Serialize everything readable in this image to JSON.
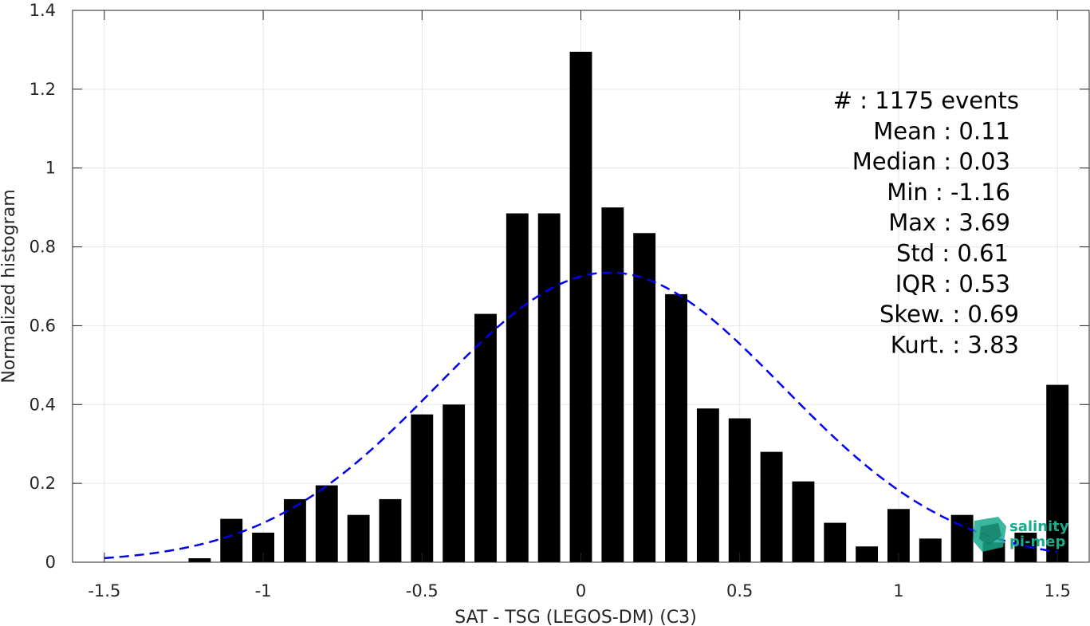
{
  "chart_data": {
    "type": "bar",
    "xlabel": "SAT - TSG (LEGOS-DM) (C3)",
    "ylabel": "Normalized histogram",
    "xlim": [
      -1.6,
      1.6
    ],
    "ylim": [
      0,
      1.4
    ],
    "grid": true,
    "xticks": [
      -1.5,
      -1,
      -0.5,
      0,
      0.5,
      1,
      1.5
    ],
    "xtick_labels": [
      "-1.5",
      "-1",
      "-0.5",
      "0",
      "0.5",
      "1",
      "1.5"
    ],
    "yticks": [
      0,
      0.2,
      0.4,
      0.6,
      0.8,
      1,
      1.2,
      1.4
    ],
    "ytick_labels": [
      "0",
      "0.2",
      "0.4",
      "0.6",
      "0.8",
      "1",
      "1.2",
      "1.4"
    ],
    "bar_width": 0.07,
    "bin_centers": [
      -1.2,
      -1.1,
      -1.0,
      -0.9,
      -0.8,
      -0.7,
      -0.6,
      -0.5,
      -0.4,
      -0.3,
      -0.2,
      -0.1,
      0.0,
      0.1,
      0.2,
      0.3,
      0.4,
      0.5,
      0.6,
      0.7,
      0.8,
      0.9,
      1.0,
      1.1,
      1.2,
      1.3,
      1.4,
      1.5
    ],
    "values": [
      0.01,
      0.11,
      0.075,
      0.16,
      0.195,
      0.12,
      0.16,
      0.375,
      0.4,
      0.63,
      0.885,
      0.885,
      1.295,
      0.9,
      0.835,
      0.68,
      0.39,
      0.365,
      0.28,
      0.205,
      0.1,
      0.04,
      0.135,
      0.06,
      0.12,
      0.05,
      0.075,
      0.45
    ],
    "bar_color": "#000000",
    "fit_curve": {
      "style": "dashed",
      "color": "#0000ee",
      "mean": 0.09,
      "std": 0.545,
      "peak": 0.735,
      "x_range": [
        -1.5,
        1.5
      ]
    },
    "stats": [
      {
        "label": "#  : 1175 events"
      },
      {
        "label": "Mean : 0.11"
      },
      {
        "label": "Median : 0.03"
      },
      {
        "label": "Min : -1.16"
      },
      {
        "label": "Max : 3.69"
      },
      {
        "label": "Std : 0.61"
      },
      {
        "label": "IQR : 0.53"
      },
      {
        "label": "Skew. : 0.69"
      },
      {
        "label": "Kurt. : 3.83"
      }
    ]
  },
  "logo": {
    "line1": "salinity",
    "line2": "pi-mep",
    "color": "#1aaa8c"
  }
}
